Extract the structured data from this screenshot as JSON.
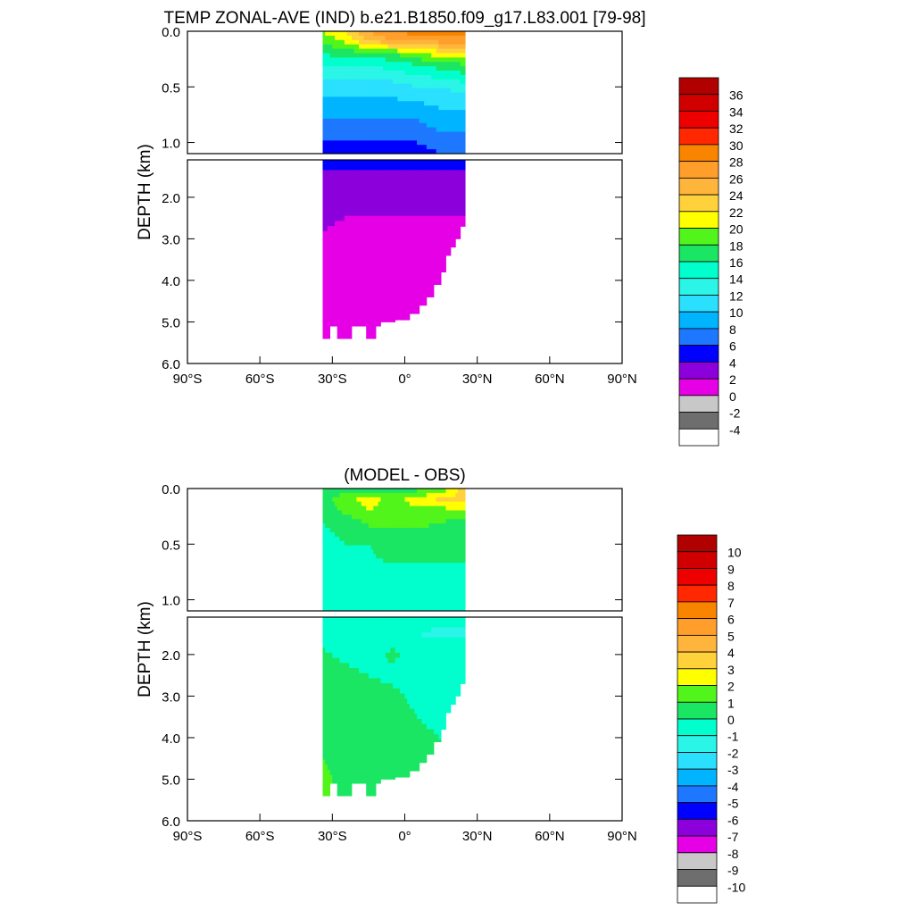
{
  "figure": {
    "title_main": "TEMP ZONAL-AVE (IND) b.e21.B1850.f09_g17.L83.001 [79-98]",
    "title_diff": "(MODEL - OBS)"
  },
  "chart_data": [
    {
      "type": "heatmap",
      "title": "TEMP ZONAL-AVE (IND) b.e21.B1850.f09_g17.L83.001 [79-98]",
      "ylabel": "DEPTH (km)",
      "xlim": [
        -90,
        90
      ],
      "ylim": [
        6.0,
        0.0
      ],
      "split_depth_km": 1.1,
      "upper_yticks": [
        "0.0",
        "0.5",
        "1.0"
      ],
      "lower_yticks": [
        "2.0",
        "3.0",
        "4.0",
        "5.0",
        "6.0"
      ],
      "xticks": [
        "90°S",
        "60°S",
        "30°S",
        "0°",
        "30°N",
        "60°N",
        "90°N"
      ],
      "data_lat_range": [
        -34,
        25
      ],
      "colorbar": {
        "labels": [
          "36",
          "34",
          "32",
          "30",
          "28",
          "26",
          "24",
          "22",
          "20",
          "18",
          "16",
          "14",
          "12",
          "10",
          "8",
          "6",
          "4",
          "2",
          "0",
          "-2",
          "-4"
        ],
        "colors": [
          "#b10000",
          "#d00000",
          "#ee0000",
          "#ff2800",
          "#f88400",
          "#ff9e2a",
          "#ffb43c",
          "#ffd23c",
          "#ffff00",
          "#52f51b",
          "#1ae664",
          "#00ffcc",
          "#2af5e6",
          "#2be0ff",
          "#00b4ff",
          "#1e78ff",
          "#0000ff",
          "#8c00dc",
          "#e600e6",
          "#c8c8c8",
          "#6e6e6e",
          "#ffffff"
        ]
      },
      "field_samples": {
        "depth_km": [
          0,
          0.05,
          0.1,
          0.2,
          0.3,
          0.5,
          0.7,
          0.9,
          1.1,
          1.3,
          1.5,
          2.0,
          2.5,
          3.0,
          4.0,
          5.0
        ],
        "lat_deg": [
          -35,
          -25,
          -15,
          -5,
          5,
          15,
          25
        ],
        "temperature_degC": [
          [
            20,
            22,
            26,
            28,
            28.5,
            29,
            29
          ],
          [
            19,
            21,
            25,
            27,
            28,
            28,
            28
          ],
          [
            18,
            20,
            23,
            25,
            25,
            26,
            26
          ],
          [
            16,
            17,
            17,
            18,
            20,
            21,
            22
          ],
          [
            14,
            14,
            14,
            15,
            16,
            17,
            18
          ],
          [
            11,
            11,
            11,
            11,
            12,
            12,
            13
          ],
          [
            9,
            9,
            9,
            9,
            9,
            10,
            10
          ],
          [
            7,
            7,
            7,
            7,
            7,
            8,
            8
          ],
          [
            5,
            5,
            5,
            5,
            5,
            6,
            6
          ],
          [
            4,
            4,
            4,
            4,
            4,
            4.5,
            4.5
          ],
          [
            3.5,
            3.5,
            3.5,
            3.5,
            3.5,
            3.5,
            3.5
          ],
          [
            2.5,
            2.8,
            3,
            2.8,
            3,
            3,
            3
          ],
          [
            2.2,
            2.0,
            1.9,
            1.9,
            1.8,
            1.8,
            1.8
          ],
          [
            2.0,
            1.6,
            1.5,
            1.4,
            1.4,
            1.4,
            1.4
          ],
          [
            1.0,
            1.0,
            1.1,
            1.1,
            1.1,
            1.1,
            1.1
          ],
          [
            0.8,
            0.9,
            0.9,
            0.9,
            0.9,
            0.9,
            0.9
          ]
        ]
      }
    },
    {
      "type": "heatmap",
      "title": "(MODEL - OBS)",
      "ylabel": "DEPTH (km)",
      "xlim": [
        -90,
        90
      ],
      "ylim": [
        6.0,
        0.0
      ],
      "split_depth_km": 1.1,
      "upper_yticks": [
        "0.0",
        "0.5",
        "1.0"
      ],
      "lower_yticks": [
        "2.0",
        "3.0",
        "4.0",
        "5.0",
        "6.0"
      ],
      "xticks": [
        "90°S",
        "60°S",
        "30°S",
        "0°",
        "30°N",
        "60°N",
        "90°N"
      ],
      "data_lat_range": [
        -34,
        25
      ],
      "colorbar": {
        "labels": [
          "10",
          "9",
          "8",
          "7",
          "6",
          "5",
          "4",
          "3",
          "2",
          "1",
          "0",
          "-1",
          "-2",
          "-3",
          "-4",
          "-5",
          "-6",
          "-7",
          "-8",
          "-9",
          "-10"
        ],
        "colors": [
          "#b10000",
          "#d00000",
          "#ee0000",
          "#ff2800",
          "#f88400",
          "#ff9e2a",
          "#ffb43c",
          "#ffd23c",
          "#ffff00",
          "#52f51b",
          "#1ae664",
          "#00ffcc",
          "#2af5e6",
          "#2be0ff",
          "#00b4ff",
          "#1e78ff",
          "#0000ff",
          "#8c00dc",
          "#e600e6",
          "#c8c8c8",
          "#6e6e6e",
          "#ffffff"
        ]
      },
      "field_samples": {
        "depth_km": [
          0,
          0.1,
          0.2,
          0.3,
          0.5,
          0.8,
          1.1,
          1.5,
          2.0,
          2.5,
          3.0,
          4.0,
          5.0
        ],
        "lat_deg": [
          -35,
          -25,
          -15,
          -5,
          5,
          15,
          25
        ],
        "difference_degC": [
          [
            0.2,
            0.6,
            0.6,
            0.5,
            0.6,
            1.2,
            3.5
          ],
          [
            0.5,
            1.5,
            2.5,
            1.5,
            2.5,
            3.2,
            3.5
          ],
          [
            0.3,
            1.2,
            2.0,
            1.5,
            1.8,
            1.5,
            2.0
          ],
          [
            0.0,
            0.5,
            1.2,
            1.2,
            1.2,
            1.0,
            0.8
          ],
          [
            -0.5,
            0.0,
            0.0,
            0.5,
            0.5,
            0.5,
            0.3
          ],
          [
            -0.5,
            -0.3,
            -0.3,
            -0.3,
            -0.5,
            -0.5,
            -0.3
          ],
          [
            -0.5,
            -0.5,
            -0.5,
            -0.5,
            -0.8,
            -0.5,
            -0.5
          ],
          [
            -0.5,
            -0.5,
            -0.5,
            -0.5,
            -1.0,
            -1.2,
            -1.2
          ],
          [
            0.2,
            -0.2,
            -0.5,
            0.2,
            -0.5,
            -0.5,
            -0.5
          ],
          [
            0.5,
            0.3,
            0.0,
            -0.2,
            -0.5,
            -0.5,
            -0.5
          ],
          [
            0.5,
            0.5,
            0.3,
            0.2,
            -0.2,
            -0.5,
            -0.5
          ],
          [
            0.5,
            0.5,
            0.5,
            0.5,
            0.2,
            0.0,
            -0.5
          ],
          [
            1.5,
            0.5,
            0.5,
            0.5,
            0.5,
            0.5,
            0.5
          ]
        ]
      }
    }
  ]
}
